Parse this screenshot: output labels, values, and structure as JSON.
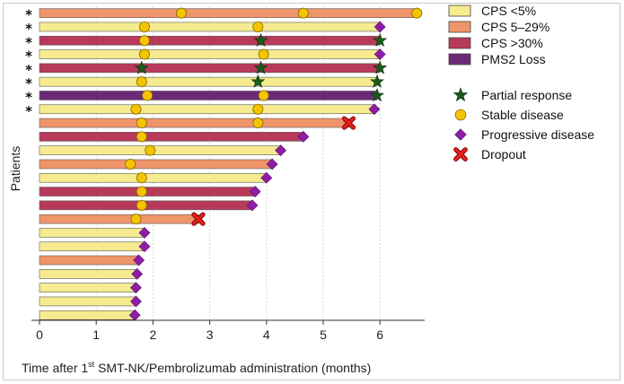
{
  "chart_data": {
    "type": "bar",
    "orientation": "horizontal",
    "ylabel": "Patients",
    "xlabel_parts": {
      "pre": "Time after 1",
      "sup": "st",
      "post": " SMT-NK/Pembrolizumab administration (months)"
    },
    "xlim": [
      0,
      6.8
    ],
    "xticks": [
      "0",
      "1",
      "2",
      "3",
      "4",
      "5",
      "6"
    ],
    "grid": "vertical dashed",
    "legend_position": "top-right",
    "colors": {
      "CPS_lt5": "#f6ec8f",
      "CPS_5_29": "#f0946a",
      "CPS_gt30": "#b8395a",
      "PMS2": "#6b2a78",
      "star": "#1a5c1a",
      "circle": "#f5c400",
      "diamond": "#8e1ea6",
      "cross": "#e0201c"
    },
    "categories_legend": [
      {
        "key": "CPS_lt5",
        "label": "CPS  <5%"
      },
      {
        "key": "CPS_5_29",
        "label": "CPS  5–29%"
      },
      {
        "key": "CPS_gt30",
        "label": "CPS  >30%"
      },
      {
        "key": "PMS2",
        "label": "PMS2  Loss"
      }
    ],
    "markers_legend": [
      {
        "type": "star",
        "label": "Partial response"
      },
      {
        "type": "circle",
        "label": "Stable disease"
      },
      {
        "type": "diamond",
        "label": "Progressive disease"
      },
      {
        "type": "cross",
        "label": "Dropout"
      }
    ],
    "row_flag_symbol": "*",
    "patients": [
      {
        "cat": "CPS_5_29",
        "end": 6.65,
        "starred": true,
        "events": [
          {
            "t": 2.5,
            "type": "circle"
          },
          {
            "t": 4.65,
            "type": "circle"
          },
          {
            "t": 6.65,
            "type": "circle"
          }
        ]
      },
      {
        "cat": "CPS_lt5",
        "end": 6.0,
        "starred": true,
        "events": [
          {
            "t": 1.85,
            "type": "circle"
          },
          {
            "t": 3.85,
            "type": "circle"
          },
          {
            "t": 6.0,
            "type": "diamond"
          }
        ]
      },
      {
        "cat": "CPS_gt30",
        "end": 6.0,
        "starred": true,
        "events": [
          {
            "t": 1.85,
            "type": "circle"
          },
          {
            "t": 3.9,
            "type": "star"
          },
          {
            "t": 6.0,
            "type": "star"
          }
        ]
      },
      {
        "cat": "CPS_lt5",
        "end": 6.0,
        "starred": true,
        "events": [
          {
            "t": 1.85,
            "type": "circle"
          },
          {
            "t": 3.95,
            "type": "circle"
          },
          {
            "t": 6.0,
            "type": "diamond"
          }
        ]
      },
      {
        "cat": "CPS_gt30",
        "end": 6.0,
        "starred": true,
        "events": [
          {
            "t": 1.8,
            "type": "star"
          },
          {
            "t": 3.9,
            "type": "star"
          },
          {
            "t": 6.0,
            "type": "star"
          }
        ]
      },
      {
        "cat": "CPS_lt5",
        "end": 5.95,
        "starred": true,
        "events": [
          {
            "t": 1.8,
            "type": "circle"
          },
          {
            "t": 3.85,
            "type": "star"
          },
          {
            "t": 5.95,
            "type": "star"
          }
        ]
      },
      {
        "cat": "PMS2",
        "end": 5.95,
        "starred": true,
        "events": [
          {
            "t": 1.9,
            "type": "circle"
          },
          {
            "t": 3.95,
            "type": "circle"
          },
          {
            "t": 5.95,
            "type": "star"
          }
        ]
      },
      {
        "cat": "CPS_lt5",
        "end": 5.9,
        "starred": true,
        "events": [
          {
            "t": 1.7,
            "type": "circle"
          },
          {
            "t": 3.85,
            "type": "circle"
          },
          {
            "t": 5.9,
            "type": "diamond"
          }
        ]
      },
      {
        "cat": "CPS_5_29",
        "end": 5.45,
        "starred": false,
        "events": [
          {
            "t": 1.8,
            "type": "circle"
          },
          {
            "t": 3.85,
            "type": "circle"
          },
          {
            "t": 5.45,
            "type": "cross"
          }
        ]
      },
      {
        "cat": "CPS_gt30",
        "end": 4.65,
        "starred": false,
        "events": [
          {
            "t": 1.8,
            "type": "circle"
          },
          {
            "t": 4.65,
            "type": "diamond"
          }
        ]
      },
      {
        "cat": "CPS_lt5",
        "end": 4.25,
        "starred": false,
        "events": [
          {
            "t": 1.95,
            "type": "circle"
          },
          {
            "t": 4.25,
            "type": "diamond"
          }
        ]
      },
      {
        "cat": "CPS_5_29",
        "end": 4.1,
        "starred": false,
        "events": [
          {
            "t": 1.6,
            "type": "circle"
          },
          {
            "t": 4.1,
            "type": "diamond"
          }
        ]
      },
      {
        "cat": "CPS_lt5",
        "end": 4.0,
        "starred": false,
        "events": [
          {
            "t": 1.8,
            "type": "circle"
          },
          {
            "t": 4.0,
            "type": "diamond"
          }
        ]
      },
      {
        "cat": "CPS_gt30",
        "end": 3.8,
        "starred": false,
        "events": [
          {
            "t": 1.8,
            "type": "circle"
          },
          {
            "t": 3.8,
            "type": "diamond"
          }
        ]
      },
      {
        "cat": "CPS_gt30",
        "end": 3.75,
        "starred": false,
        "events": [
          {
            "t": 1.8,
            "type": "circle"
          },
          {
            "t": 3.75,
            "type": "diamond"
          }
        ]
      },
      {
        "cat": "CPS_5_29",
        "end": 2.8,
        "starred": false,
        "events": [
          {
            "t": 1.7,
            "type": "circle"
          },
          {
            "t": 2.8,
            "type": "cross"
          }
        ]
      },
      {
        "cat": "CPS_lt5",
        "end": 1.85,
        "starred": false,
        "events": [
          {
            "t": 1.85,
            "type": "diamond"
          }
        ]
      },
      {
        "cat": "CPS_lt5",
        "end": 1.85,
        "starred": false,
        "events": [
          {
            "t": 1.85,
            "type": "diamond"
          }
        ]
      },
      {
        "cat": "CPS_5_29",
        "end": 1.75,
        "starred": false,
        "events": [
          {
            "t": 1.75,
            "type": "diamond"
          }
        ]
      },
      {
        "cat": "CPS_lt5",
        "end": 1.72,
        "starred": false,
        "events": [
          {
            "t": 1.72,
            "type": "diamond"
          }
        ]
      },
      {
        "cat": "CPS_lt5",
        "end": 1.7,
        "starred": false,
        "events": [
          {
            "t": 1.7,
            "type": "diamond"
          }
        ]
      },
      {
        "cat": "CPS_lt5",
        "end": 1.7,
        "starred": false,
        "events": [
          {
            "t": 1.7,
            "type": "diamond"
          }
        ]
      },
      {
        "cat": "CPS_lt5",
        "end": 1.68,
        "starred": false,
        "events": [
          {
            "t": 1.68,
            "type": "diamond"
          }
        ]
      }
    ]
  }
}
